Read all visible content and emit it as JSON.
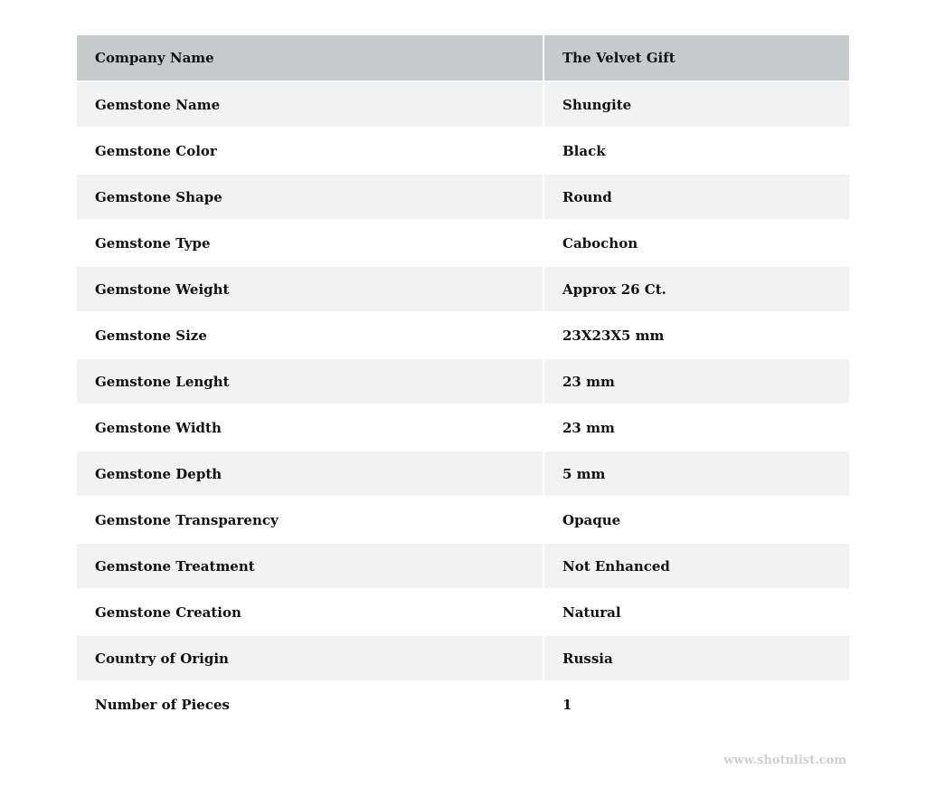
{
  "header": {
    "key": "Company Name",
    "value": "The Velvet Gift"
  },
  "rows": [
    {
      "key": "Gemstone Name",
      "value": "Shungite"
    },
    {
      "key": "Gemstone Color",
      "value": "Black"
    },
    {
      "key": "Gemstone Shape",
      "value": "Round"
    },
    {
      "key": "Gemstone Type",
      "value": "Cabochon"
    },
    {
      "key": "Gemstone Weight",
      "value": "Approx 26 Ct."
    },
    {
      "key": "Gemstone Size",
      "value": "23X23X5 mm"
    },
    {
      "key": "Gemstone Lenght",
      "value": "23 mm"
    },
    {
      "key": "Gemstone Width",
      "value": "23 mm"
    },
    {
      "key": "Gemstone Depth",
      "value": "5 mm"
    },
    {
      "key": "Gemstone Transparency",
      "value": "Opaque"
    },
    {
      "key": "Gemstone Treatment",
      "value": "Not Enhanced"
    },
    {
      "key": "Gemstone Creation",
      "value": "Natural"
    },
    {
      "key": "Country of Origin",
      "value": "Russia"
    },
    {
      "key": "Number of Pieces",
      "value": "1"
    }
  ],
  "watermark": "www.shotnlist.com",
  "colors": {
    "header_bg": "#c6cacb",
    "stripe_bg": "#f2f2f2",
    "watermark": "#cfcfcf"
  }
}
